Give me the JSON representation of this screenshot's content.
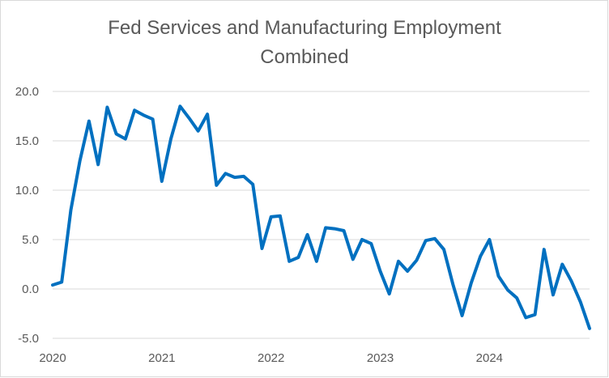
{
  "chart_data": {
    "type": "line",
    "title": "Fed Services and Manufacturing Employment Combined",
    "title_lines": [
      "Fed Services and Manufacturing Employment",
      "Combined"
    ],
    "xlabel": "",
    "ylabel": "",
    "ylim": [
      -5,
      20
    ],
    "xlim": [
      2020.0,
      2024.917
    ],
    "grid": true,
    "legend": "none",
    "y_ticks": [
      {
        "value": 20,
        "label": "20.0"
      },
      {
        "value": 15,
        "label": "15.0"
      },
      {
        "value": 10,
        "label": "10.0"
      },
      {
        "value": 5,
        "label": "5.0"
      },
      {
        "value": 0,
        "label": "0.0"
      },
      {
        "value": -5,
        "label": "-5.0"
      }
    ],
    "x_ticks": [
      {
        "value": 2020,
        "label": "2020"
      },
      {
        "value": 2021,
        "label": "2021"
      },
      {
        "value": 2022,
        "label": "2022"
      },
      {
        "value": 2023,
        "label": "2023"
      },
      {
        "value": 2024,
        "label": "2024"
      }
    ],
    "series": [
      {
        "name": "Fed Services and Manufacturing Employment Combined",
        "color": "#0070c0",
        "x": [
          2020.0,
          2020.083,
          2020.167,
          2020.25,
          2020.333,
          2020.417,
          2020.5,
          2020.583,
          2020.667,
          2020.75,
          2020.833,
          2020.917,
          2021.0,
          2021.083,
          2021.167,
          2021.25,
          2021.333,
          2021.417,
          2021.5,
          2021.583,
          2021.667,
          2021.75,
          2021.833,
          2021.917,
          2022.0,
          2022.083,
          2022.167,
          2022.25,
          2022.333,
          2022.417,
          2022.5,
          2022.583,
          2022.667,
          2022.75,
          2022.833,
          2022.917,
          2023.0,
          2023.083,
          2023.167,
          2023.25,
          2023.333,
          2023.417,
          2023.5,
          2023.583,
          2023.667,
          2023.75,
          2023.833,
          2023.917,
          2024.0,
          2024.083,
          2024.167,
          2024.25,
          2024.333,
          2024.417,
          2024.5,
          2024.583,
          2024.667,
          2024.75,
          2024.833,
          2024.917
        ],
        "values": [
          0.4,
          0.7,
          8.0,
          13.0,
          17.0,
          12.6,
          18.4,
          15.7,
          15.2,
          18.1,
          17.6,
          17.2,
          10.9,
          15.2,
          18.5,
          17.3,
          16.0,
          17.7,
          10.5,
          11.7,
          11.3,
          11.4,
          10.6,
          4.1,
          7.3,
          7.4,
          2.8,
          3.2,
          5.5,
          2.8,
          6.2,
          6.1,
          5.9,
          3.0,
          5.0,
          4.6,
          1.8,
          -0.5,
          2.8,
          1.8,
          2.9,
          4.9,
          5.1,
          4.0,
          0.4,
          -2.7,
          0.6,
          3.3,
          5.0,
          1.3,
          -0.1,
          -0.9,
          -2.9,
          -2.6,
          4.0,
          -0.6,
          2.5,
          0.8,
          -1.3,
          -4.0
        ]
      }
    ]
  }
}
